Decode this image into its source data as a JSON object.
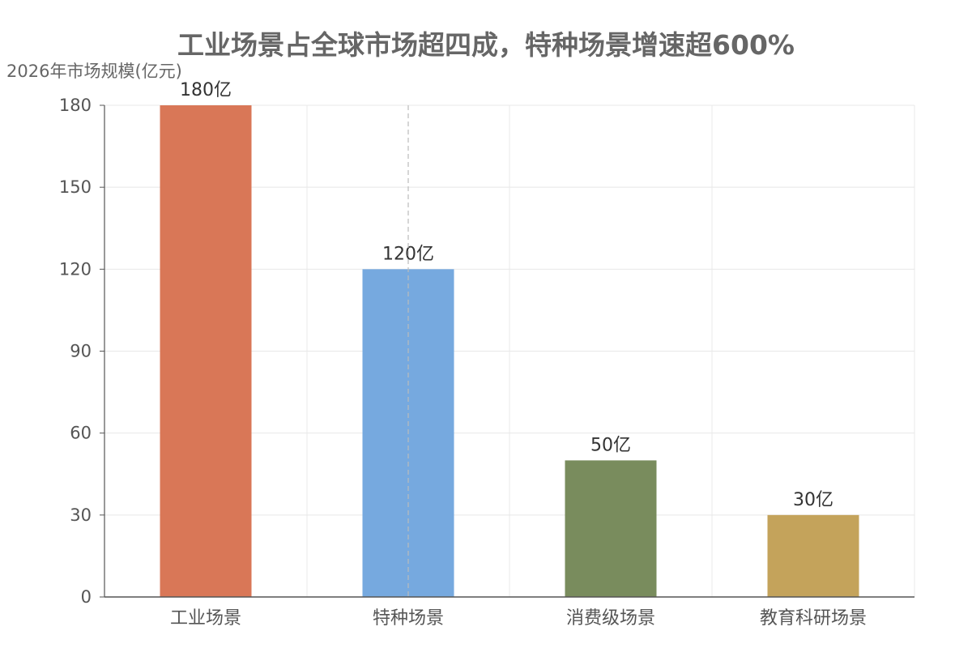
{
  "chart_data": {
    "type": "bar",
    "title": "工业场景占全球市场超四成，特种场景增速超600%",
    "ylabel": "2026年市场规模(亿元)",
    "xlabel": "",
    "categories": [
      "工业场景",
      "特种场景",
      "消费级场景",
      "教育科研场景"
    ],
    "values": [
      180,
      120,
      50,
      30
    ],
    "data_labels": [
      "180亿",
      "120亿",
      "50亿",
      "30亿"
    ],
    "colors": [
      "#d97757",
      "#76a9df",
      "#798c5d",
      "#c4a35b"
    ],
    "ylim": [
      0,
      180
    ],
    "yticks": [
      0,
      30,
      60,
      90,
      120,
      150,
      180
    ],
    "grid": true,
    "legend": "none"
  }
}
